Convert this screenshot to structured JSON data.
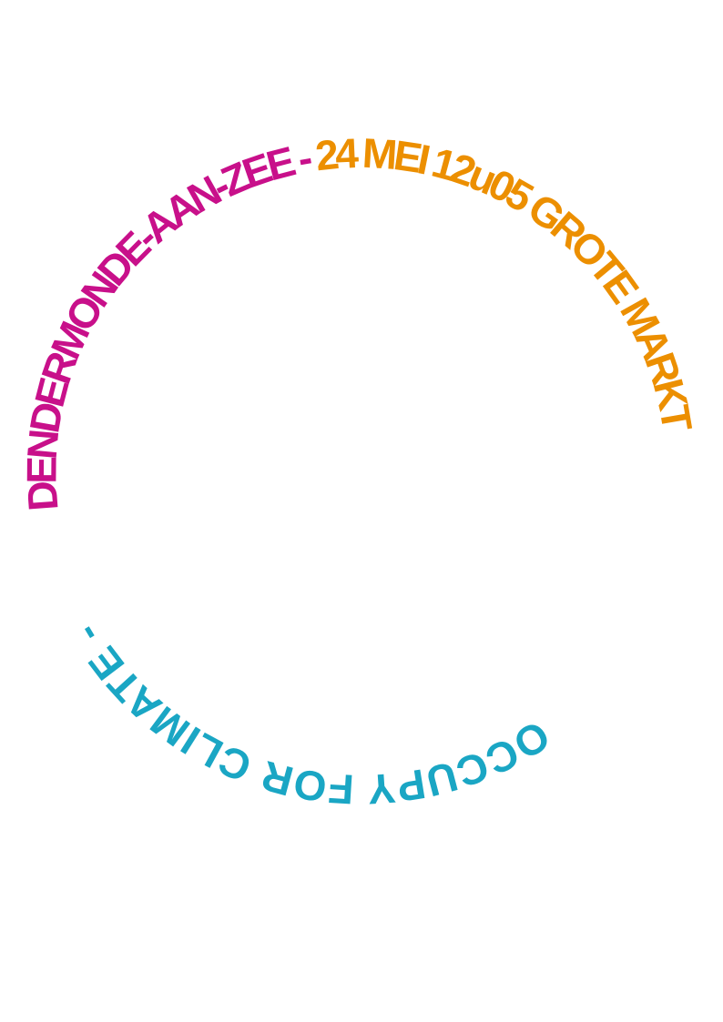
{
  "poster": {
    "segments": [
      {
        "text": "DENDERMONDE-AAN-ZEE - ",
        "color": "#c8108a"
      },
      {
        "text": "24 MEI 12u05 GROTE MARKT",
        "color": "#ec8f00"
      },
      {
        "text": "OCCUPY FOR CLIMATE - ",
        "color": "#1aa6c4"
      }
    ]
  }
}
